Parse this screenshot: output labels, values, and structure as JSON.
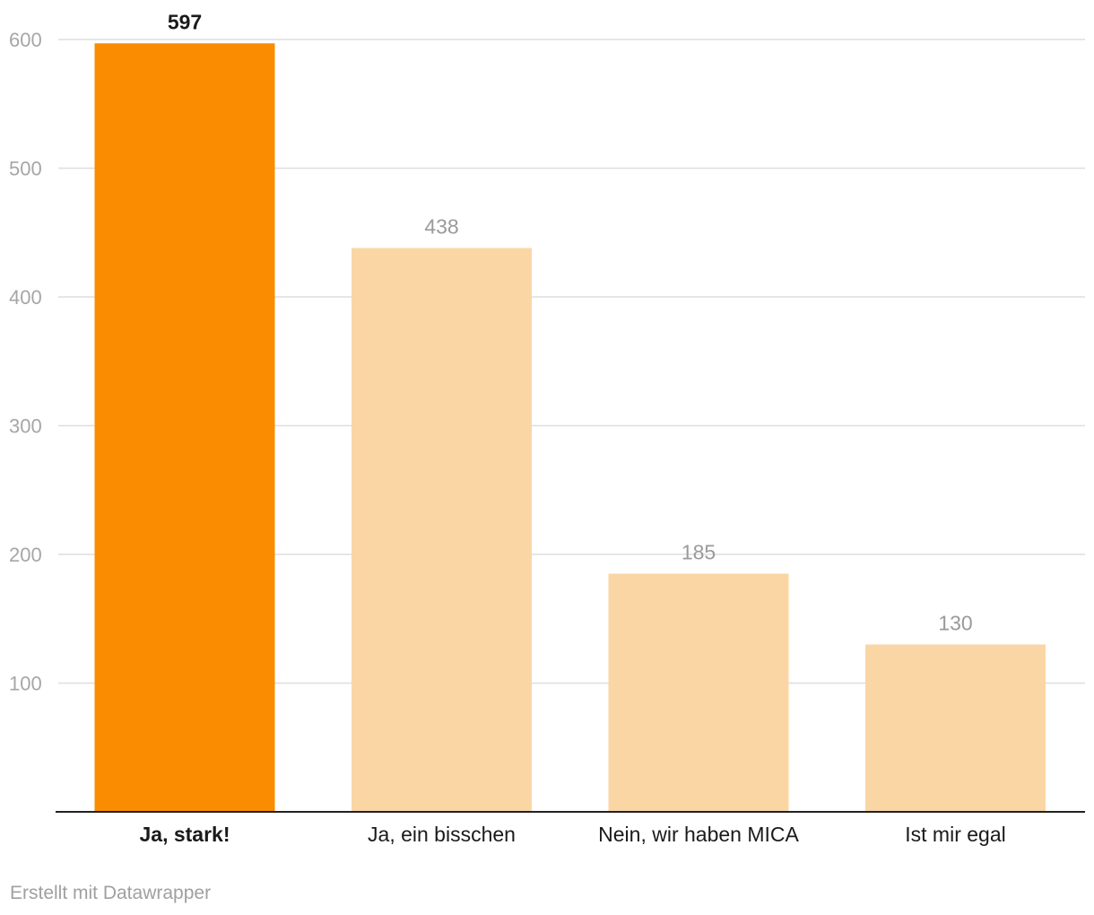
{
  "chart_data": {
    "type": "bar",
    "categories": [
      "Ja, stark!",
      "Ja, ein bisschen",
      "Nein, wir haben MICA",
      "Ist mir egal"
    ],
    "values": [
      597,
      438,
      185,
      130
    ],
    "title": "",
    "xlabel": "",
    "ylabel": "",
    "ylim": [
      0,
      600
    ],
    "yticks": [
      100,
      200,
      300,
      400,
      500,
      600
    ],
    "grid": true,
    "highlight_index": 0,
    "colors": {
      "highlight": "#f98c00",
      "normal": "#fbd6a5",
      "grid": "#dedede",
      "axis": "#222222",
      "tick_label": "#a6a6a6",
      "value_label_normal": "#9a9a9a",
      "value_label_highlight": "#1a1a1a",
      "category_label": "#1a1a1a"
    }
  },
  "footer": {
    "credit": "Erstellt mit Datawrapper"
  }
}
